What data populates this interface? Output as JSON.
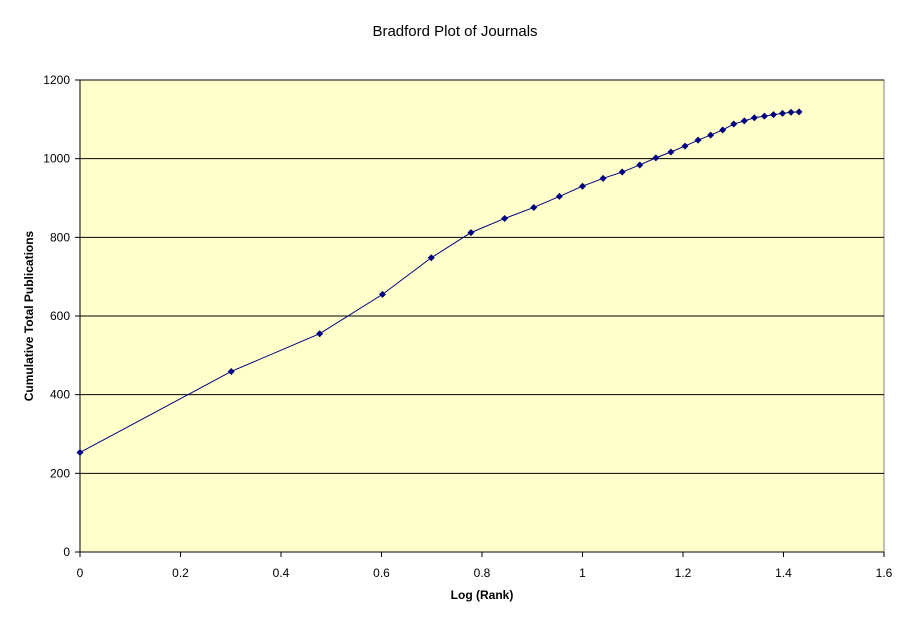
{
  "chart_data": {
    "type": "line",
    "title": "Bradford Plot of Journals",
    "xlabel": "Log (Rank)",
    "ylabel": "Cumulative Total Publications",
    "xlim": [
      0,
      1.6
    ],
    "ylim": [
      0,
      1200
    ],
    "xticks": [
      0,
      0.2,
      0.4,
      0.6,
      0.8,
      1,
      1.2,
      1.4,
      1.6
    ],
    "yticks": [
      0,
      200,
      400,
      600,
      800,
      1000,
      1200
    ],
    "xtick_labels": [
      "0",
      "0.2",
      "0.4",
      "0.6",
      "0.8",
      "1",
      "1.2",
      "1.4",
      "1.6"
    ],
    "ytick_labels": [
      "0",
      "200",
      "400",
      "600",
      "800",
      "1000",
      "1200"
    ],
    "grid": "horizontal",
    "legend": "none",
    "colors": {
      "plot_background": "#FFFFCC",
      "series": "#000080",
      "gridline": "#000000"
    },
    "series": [
      {
        "x": [
          0,
          0.301,
          0.477,
          0.602,
          0.699,
          0.778,
          0.845,
          0.903,
          0.954,
          1.0,
          1.041,
          1.079,
          1.114,
          1.146,
          1.176,
          1.204,
          1.23,
          1.255,
          1.279,
          1.301,
          1.322,
          1.342,
          1.362,
          1.38,
          1.398,
          1.415,
          1.431
        ],
        "y": [
          253,
          459,
          555,
          655,
          748,
          812,
          848,
          876,
          904,
          930,
          950,
          966,
          984,
          1002,
          1017,
          1032,
          1047,
          1060,
          1073,
          1088,
          1096,
          1104,
          1108,
          1112,
          1115,
          1118,
          1119
        ]
      }
    ]
  }
}
